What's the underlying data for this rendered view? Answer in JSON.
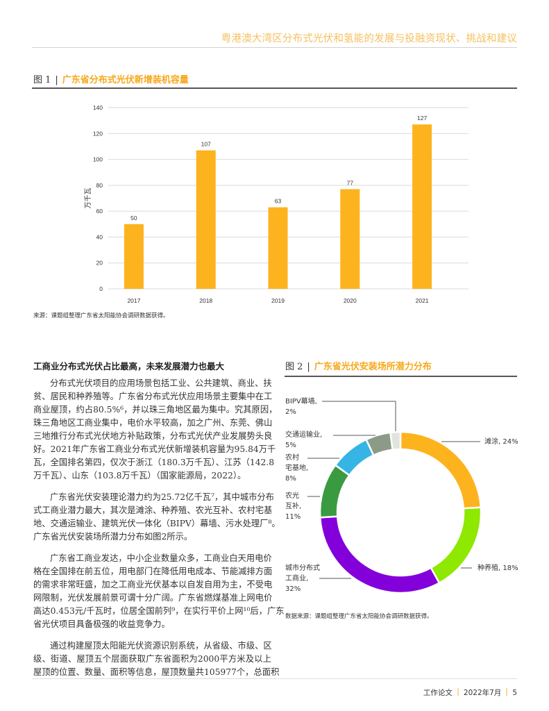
{
  "header": {
    "title": "粤港澳大湾区分布式光伏和氢能的发展与投融资现状、挑战和建议"
  },
  "figure1": {
    "number": "图 1",
    "title": "广东省分布式光伏新增装机容量",
    "source": "来源：课题组整理广东省太阳能协会调研数据获得。"
  },
  "figure2": {
    "number": "图 2",
    "title": "广东省光伏安装场所潜力分布",
    "source": "数据来源：课题组整理广东省太阳能协会调研数据获得。"
  },
  "chart_data": [
    {
      "type": "bar",
      "categories": [
        "2017",
        "2018",
        "2019",
        "2020",
        "2021"
      ],
      "values": [
        50,
        107,
        63,
        77,
        127
      ],
      "ylabel": "万千瓦",
      "ylim": [
        0,
        140
      ],
      "yticks": [
        "0",
        "20",
        "40",
        "60",
        "80",
        "100",
        "120",
        "140"
      ],
      "grid": true,
      "color": "#FDB31E"
    },
    {
      "type": "pie",
      "donut": true,
      "start": "top-clockwise",
      "slices": [
        {
          "label": "滩涂",
          "value": 24,
          "color": "#FDB31E",
          "text": [
            "滩涂, 24%"
          ]
        },
        {
          "label": "种养殖",
          "value": 18,
          "color": "#8EE800",
          "text": [
            "种养殖, 18%"
          ]
        },
        {
          "label": "城市分布式工商业",
          "value": 32,
          "color": "#8300DB",
          "text": [
            "城市分布式",
            "工商业,",
            "32%"
          ]
        },
        {
          "label": "农光互补",
          "value": 11,
          "color": "#3A9A40",
          "text": [
            "农光",
            "互补,",
            "11%"
          ]
        },
        {
          "label": "农村宅基地",
          "value": 8,
          "color": "#36B4E5",
          "text": [
            "农村",
            "宅基地,",
            "8%"
          ]
        },
        {
          "label": "交通运输业",
          "value": 5,
          "color": "#8C9A88",
          "text": [
            "交通运输业,",
            "5%"
          ]
        },
        {
          "label": "BIPV幕墙",
          "value": 2,
          "color": "#E2E4E0",
          "text": [
            "BIPV幕墙,",
            "2%"
          ]
        }
      ]
    }
  ],
  "section": {
    "heading": "工商业分布式光伏占比最高，未来发展潜力也最大",
    "paragraphs": [
      [
        "分布式光伏项目的应用场景包括工业、公共建筑、商业、扶",
        "贫、居民和种养殖等。广东省分布式光伏应用场景主要集中在工",
        "商业屋顶，约占80.5%⁶，并以珠三角地区最为集中。究其原因，",
        "珠三角地区工商业集中，电价水平较高，加之广州、东莞、佛山",
        "三地推行分布式光伏地方补贴政策，分布式光伏产业发展势头良",
        "好。2021年广东省工商业分布式光伏新增装机容量为95.84万千",
        "瓦，全国排名第四，仅次于浙江（180.3万千瓦）、江苏（142.8",
        "万千瓦）、山东（103.8万千瓦）（国家能源局，2022）。"
      ],
      [
        "广东省光伏安装理论潜力约为25.72亿千瓦⁷，其中城市分布",
        "式工商业潜力最大，其次是滩涂、种养殖、农光互补、农村宅基",
        "地、交通运输业、建筑光伏一体化（BIPV）幕墙、污水处理厂⁸。",
        "广东省光伏安装场所潜力分布如图2所示。"
      ],
      [
        "广东省工商业发达，中小企业数量众多，工商业白天用电价",
        "格在全国排在前五位，用电部门在降低用电成本、节能减排方面",
        "的需求非常旺盛，加之工商业光伏基本以自发自用为主，不受电",
        "网限制，光伏发展前景可谓十分广阔。广东省燃煤基准上网电价",
        "高达0.453元/千瓦时，位居全国前列⁹，在实行平价上网¹⁰后，广东",
        "省光伏项目具备极强的收益竞争力。"
      ],
      [
        "通过构建屋顶太阳能光伏资源识别系统，从省级、市级、区",
        "级、街道、屋顶五个层面获取广东省面积为2000平方米及以上",
        "屋顶的位置、数量、面积等信息，屋顶数量共105977个，总面积"
      ]
    ]
  },
  "footer": {
    "publication": "工作论文",
    "date": "2022年7月",
    "page": "5"
  }
}
